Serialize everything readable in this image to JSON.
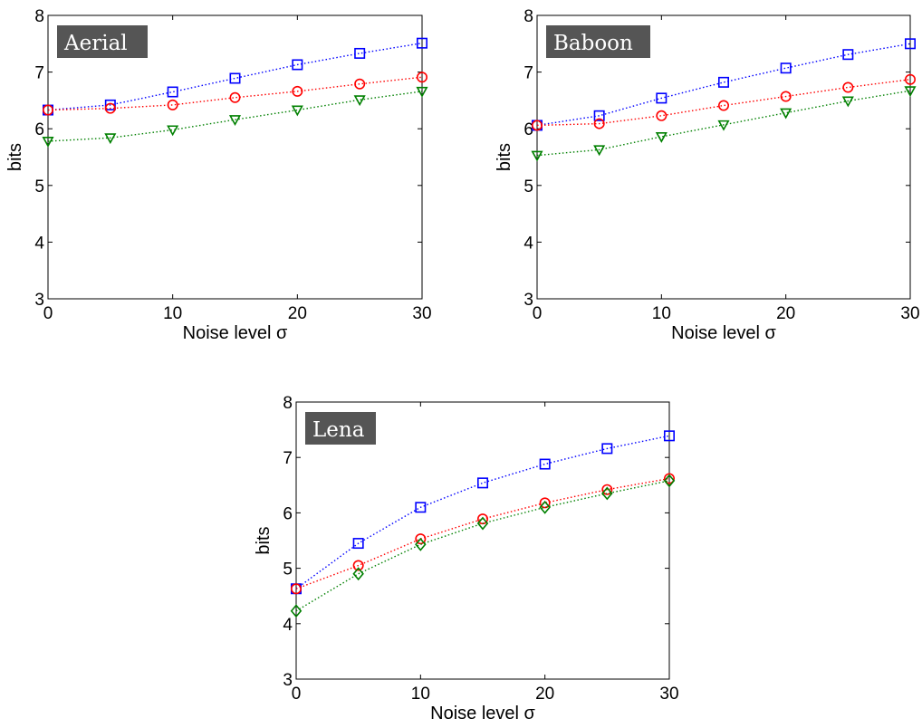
{
  "chart_data": [
    {
      "type": "line",
      "tag": "Aerial",
      "xlabel": "Noise level σ",
      "ylabel": "bits",
      "xlim": [
        0,
        30
      ],
      "ylim": [
        3,
        8
      ],
      "xticks": [
        "0",
        "10",
        "20",
        "30"
      ],
      "yticks": [
        "3",
        "4",
        "5",
        "6",
        "7",
        "8"
      ],
      "x": [
        0,
        5,
        10,
        15,
        20,
        25,
        30
      ],
      "series": [
        {
          "color": "#0000ff",
          "marker": "square",
          "values": [
            6.33,
            6.42,
            6.65,
            6.89,
            7.13,
            7.33,
            7.51
          ]
        },
        {
          "color": "#ff0000",
          "marker": "circle",
          "values": [
            6.33,
            6.36,
            6.42,
            6.55,
            6.66,
            6.79,
            6.91
          ]
        },
        {
          "color": "#008000",
          "marker": "triangle-down",
          "values": [
            5.78,
            5.84,
            5.98,
            6.16,
            6.33,
            6.51,
            6.66
          ]
        }
      ]
    },
    {
      "type": "line",
      "tag": "Baboon",
      "xlabel": "Noise level σ",
      "ylabel": "bits",
      "xlim": [
        0,
        30
      ],
      "ylim": [
        3,
        8
      ],
      "xticks": [
        "0",
        "10",
        "20",
        "30"
      ],
      "yticks": [
        "3",
        "4",
        "5",
        "6",
        "7",
        "8"
      ],
      "x": [
        0,
        5,
        10,
        15,
        20,
        25,
        30
      ],
      "series": [
        {
          "color": "#0000ff",
          "marker": "square",
          "values": [
            6.06,
            6.23,
            6.54,
            6.82,
            7.07,
            7.31,
            7.5
          ]
        },
        {
          "color": "#ff0000",
          "marker": "circle",
          "values": [
            6.06,
            6.09,
            6.23,
            6.41,
            6.57,
            6.73,
            6.87
          ]
        },
        {
          "color": "#008000",
          "marker": "triangle-down",
          "values": [
            5.53,
            5.63,
            5.86,
            6.07,
            6.28,
            6.49,
            6.67
          ]
        }
      ]
    },
    {
      "type": "line",
      "tag": "Lena",
      "xlabel": "Noise level σ",
      "ylabel": "bits",
      "xlim": [
        0,
        30
      ],
      "ylim": [
        3,
        8
      ],
      "xticks": [
        "0",
        "10",
        "20",
        "30"
      ],
      "yticks": [
        "3",
        "4",
        "5",
        "6",
        "7",
        "8"
      ],
      "x": [
        0,
        5,
        10,
        15,
        20,
        25,
        30
      ],
      "series": [
        {
          "color": "#0000ff",
          "marker": "square",
          "values": [
            4.63,
            5.45,
            6.1,
            6.54,
            6.88,
            7.16,
            7.39
          ]
        },
        {
          "color": "#ff0000",
          "marker": "circle",
          "values": [
            4.63,
            5.05,
            5.53,
            5.89,
            6.18,
            6.42,
            6.62
          ]
        },
        {
          "color": "#008000",
          "marker": "diamond",
          "values": [
            4.23,
            4.9,
            5.43,
            5.81,
            6.1,
            6.35,
            6.58
          ]
        }
      ]
    }
  ]
}
